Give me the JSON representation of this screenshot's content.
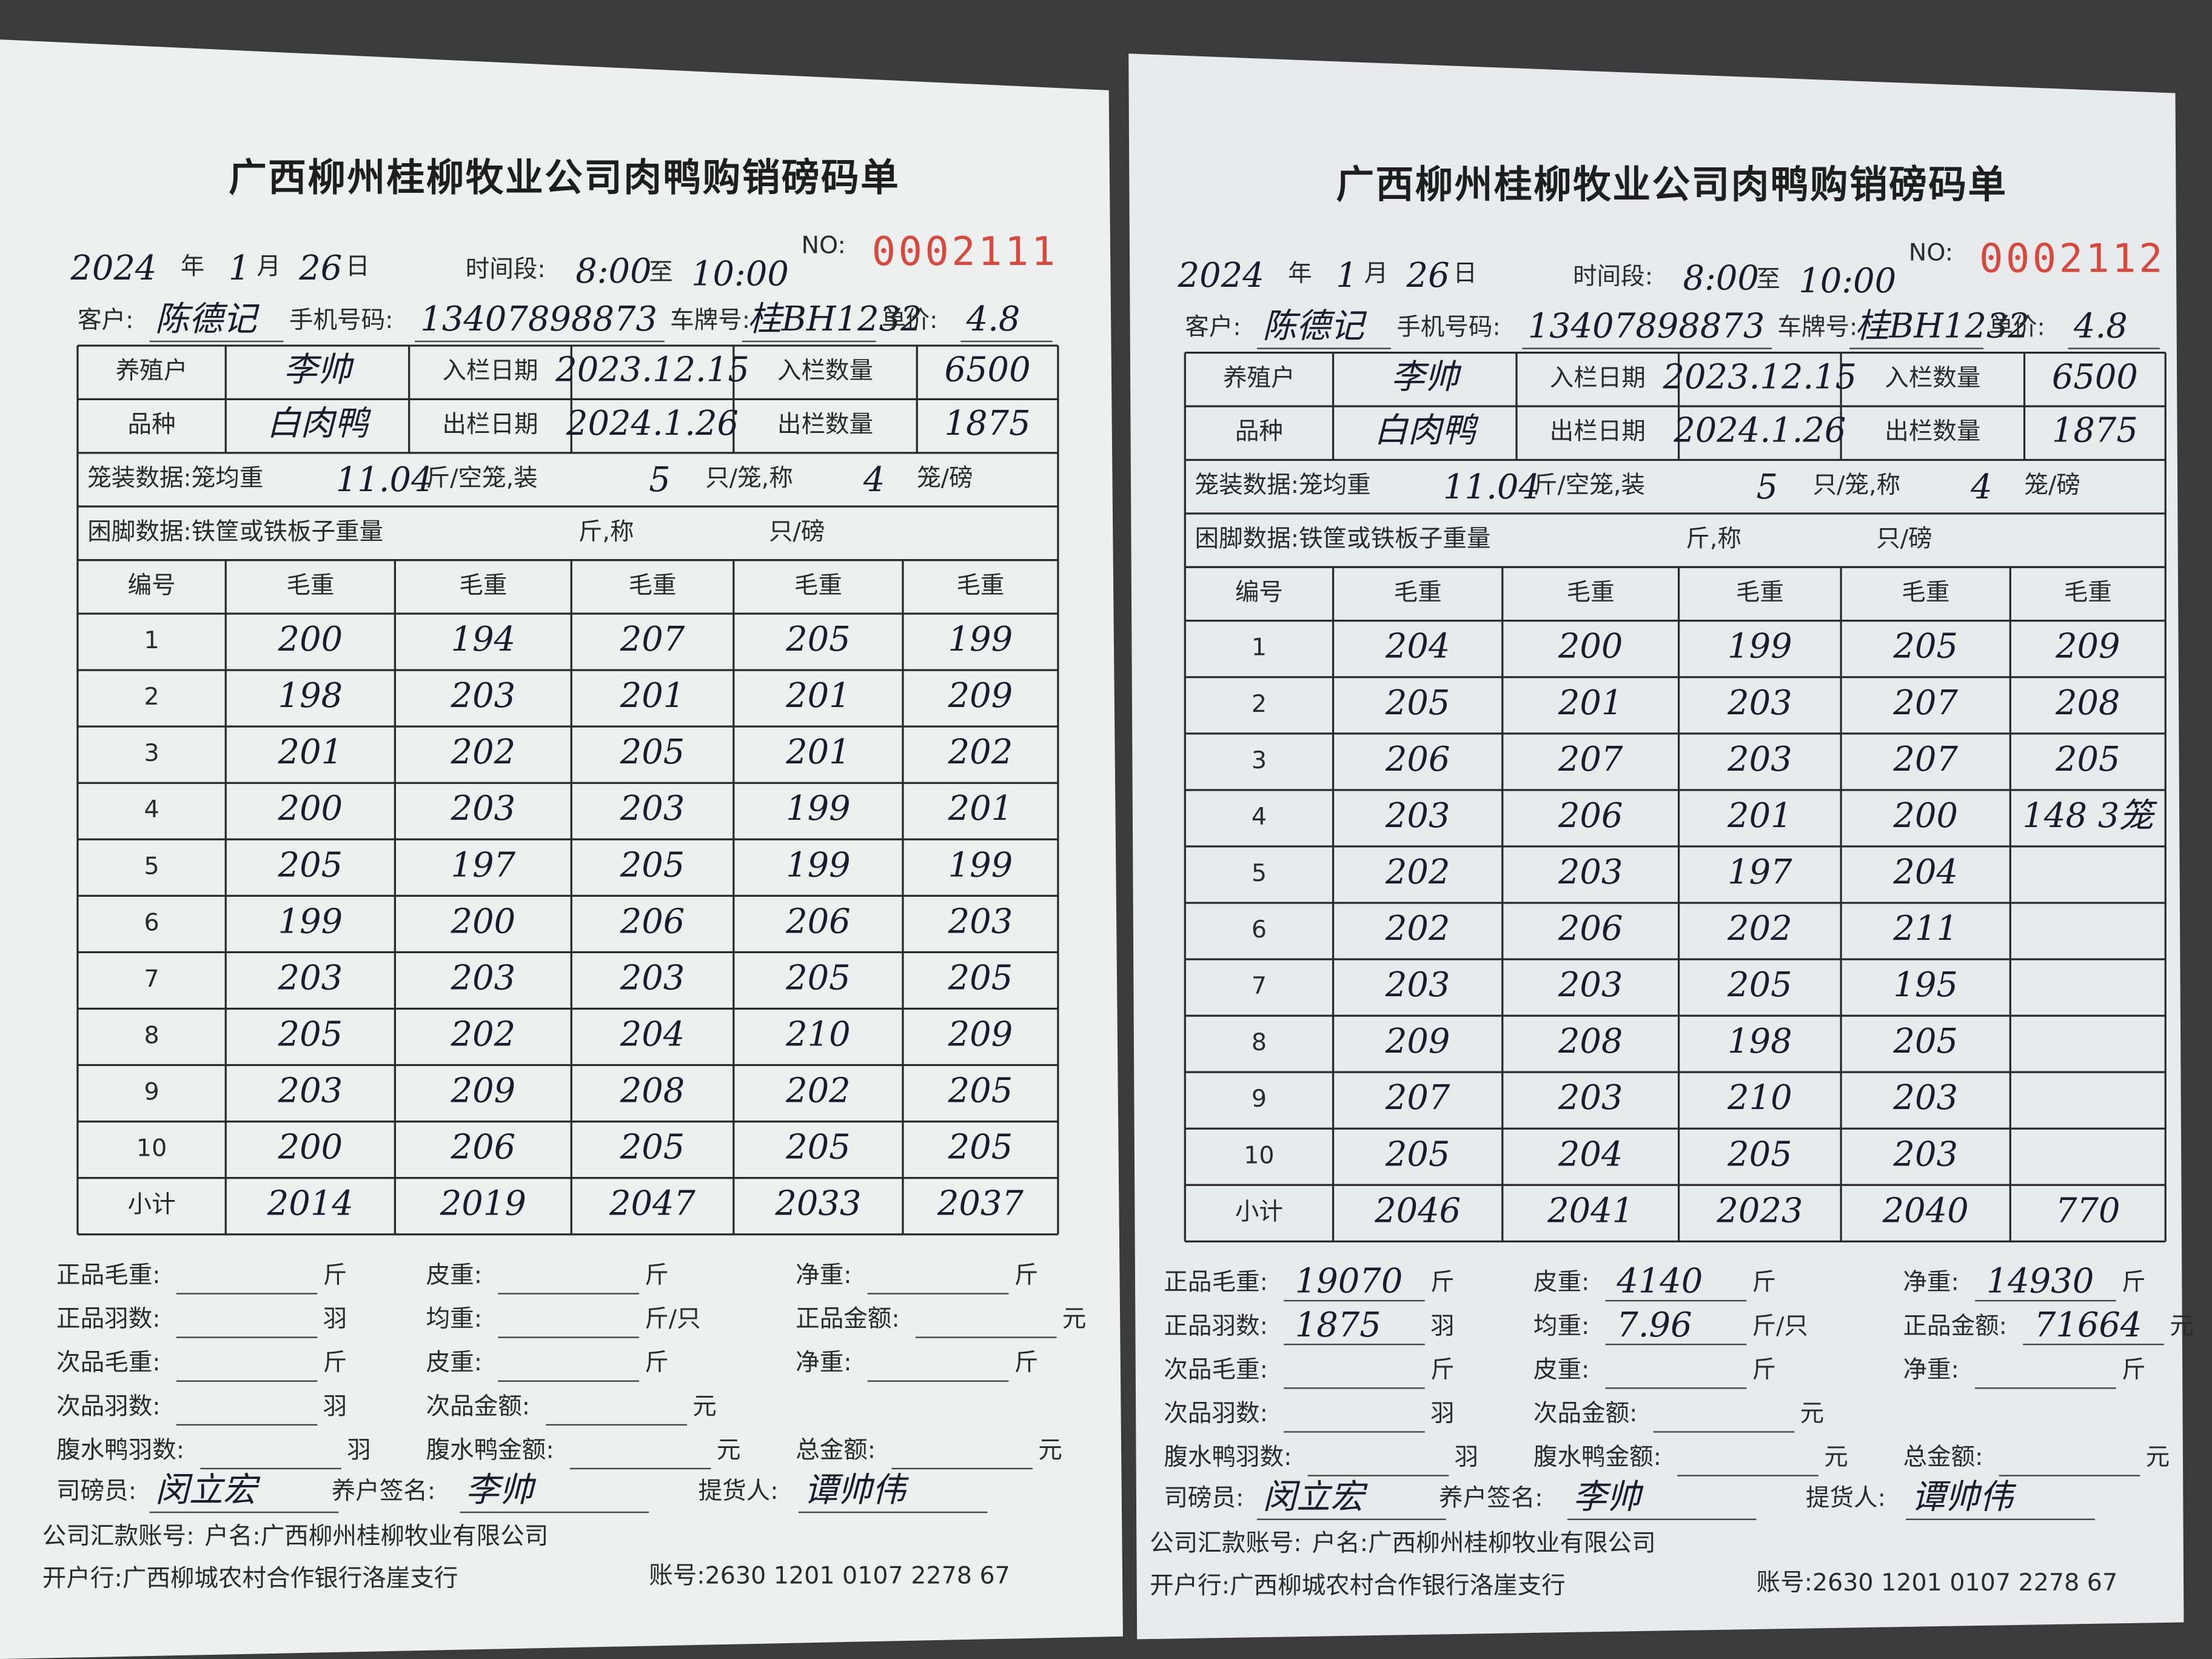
{
  "forms": [
    {
      "title": "广西柳州桂柳牧业公司肉鸭购销磅码单",
      "serial_label": "NO:",
      "serial": "0002111",
      "date": {
        "year": "2024",
        "year_unit": "年",
        "month": "1",
        "month_unit": "月",
        "day": "26",
        "day_unit": "日"
      },
      "time": {
        "label": "时间段:",
        "start": "8:00",
        "sep": "至",
        "end": "10:00"
      },
      "customer": [
        {
          "label": "客户:",
          "value": "陈德记"
        },
        {
          "label": "手机号码:",
          "value": "13407898873"
        },
        {
          "label": "车牌号:",
          "value": "桂BH1232"
        },
        {
          "label": "单价:",
          "value": "4.8"
        }
      ],
      "info_rows": [
        [
          "养殖户",
          "李帅",
          "入栏日期",
          "2023.12.15",
          "入栏数量",
          "6500"
        ],
        [
          "品种",
          "白肉鸭",
          "出栏日期",
          "2024.1.26",
          "出栏数量",
          "1875"
        ]
      ],
      "cage": {
        "label": "笼装数据:笼均重",
        "weight": "11.04",
        "unit1": "斤/空笼,装",
        "per_cage": "5",
        "unit2": "只/笼,称",
        "cages": "4",
        "unit3": "笼/磅"
      },
      "foot": {
        "label": "困脚数据:铁筐或铁板子重量",
        "unit1": "斤,称",
        "unit2": "只/磅"
      },
      "weights": {
        "header": [
          "编号",
          "毛重",
          "毛重",
          "毛重",
          "毛重",
          "毛重"
        ],
        "rows": [
          [
            "1",
            "200",
            "194",
            "207",
            "205",
            "199"
          ],
          [
            "2",
            "198",
            "203",
            "201",
            "201",
            "209"
          ],
          [
            "3",
            "201",
            "202",
            "205",
            "201",
            "202"
          ],
          [
            "4",
            "200",
            "203",
            "203",
            "199",
            "201"
          ],
          [
            "5",
            "205",
            "197",
            "205",
            "199",
            "199"
          ],
          [
            "6",
            "199",
            "200",
            "206",
            "206",
            "203"
          ],
          [
            "7",
            "203",
            "203",
            "203",
            "205",
            "205"
          ],
          [
            "8",
            "205",
            "202",
            "204",
            "210",
            "209"
          ],
          [
            "9",
            "203",
            "209",
            "208",
            "202",
            "205"
          ],
          [
            "10",
            "200",
            "206",
            "205",
            "205",
            "205"
          ]
        ],
        "subtotal": [
          "小计",
          "2014",
          "2019",
          "2047",
          "2033",
          "2037"
        ]
      },
      "summary": [
        [
          {
            "label": "正品毛重:",
            "unit": "斤"
          },
          {
            "label": "皮重:",
            "unit": "斤"
          },
          {
            "label": "净重:",
            "unit": "斤"
          }
        ],
        [
          {
            "label": "正品羽数:",
            "unit": "羽"
          },
          {
            "label": "均重:",
            "unit": "斤/只"
          },
          {
            "label": "正品金额:",
            "unit": "元"
          }
        ],
        [
          {
            "label": "次品毛重:",
            "unit": "斤"
          },
          {
            "label": "皮重:",
            "unit": "斤"
          },
          {
            "label": "净重:",
            "unit": "斤"
          }
        ],
        [
          {
            "label": "次品羽数:",
            "unit": "羽"
          },
          {
            "label": "次品金额:",
            "unit": "元"
          }
        ],
        [
          {
            "label": "腹水鸭羽数:",
            "unit": "羽"
          },
          {
            "label": "腹水鸭金额:",
            "unit": "元"
          },
          {
            "label": "总金额:",
            "unit": "元"
          }
        ]
      ],
      "signatures": [
        {
          "label": "司磅员:",
          "value": "闵立宏"
        },
        {
          "label": "养户签名:",
          "value": "李帅"
        },
        {
          "label": "提货人:",
          "value": "谭帅伟"
        }
      ],
      "account": {
        "label": "公司汇款账号:",
        "name": "户名:广西柳州桂柳牧业有限公司"
      },
      "bank": {
        "name": "开户行:广西柳城农村合作银行洛崖支行",
        "number": "账号:2630 1201 0107 2278 67"
      }
    },
    {
      "title": "广西柳州桂柳牧业公司肉鸭购销磅码单",
      "serial_label": "NO:",
      "serial": "0002112",
      "date": {
        "year": "2024",
        "year_unit": "年",
        "month": "1",
        "month_unit": "月",
        "day": "26",
        "day_unit": "日"
      },
      "time": {
        "label": "时间段:",
        "start": "8:00",
        "sep": "至",
        "end": "10:00"
      },
      "customer": [
        {
          "label": "客户:",
          "value": "陈德记"
        },
        {
          "label": "手机号码:",
          "value": "13407898873"
        },
        {
          "label": "车牌号:",
          "value": "桂BH1232"
        },
        {
          "label": "单价:",
          "value": "4.8"
        }
      ],
      "info_rows": [
        [
          "养殖户",
          "李帅",
          "入栏日期",
          "2023.12.15",
          "入栏数量",
          "6500"
        ],
        [
          "品种",
          "白肉鸭",
          "出栏日期",
          "2024.1.26",
          "出栏数量",
          "1875"
        ]
      ],
      "cage": {
        "label": "笼装数据:笼均重",
        "weight": "11.04",
        "unit1": "斤/空笼,装",
        "per_cage": "5",
        "unit2": "只/笼,称",
        "cages": "4",
        "unit3": "笼/磅"
      },
      "foot": {
        "label": "困脚数据:铁筐或铁板子重量",
        "unit1": "斤,称",
        "unit2": "只/磅"
      },
      "weights": {
        "header": [
          "编号",
          "毛重",
          "毛重",
          "毛重",
          "毛重",
          "毛重"
        ],
        "rows": [
          [
            "1",
            "204",
            "200",
            "199",
            "205",
            "209"
          ],
          [
            "2",
            "205",
            "201",
            "203",
            "207",
            "208"
          ],
          [
            "3",
            "206",
            "207",
            "203",
            "207",
            "205"
          ],
          [
            "4",
            "203",
            "206",
            "201",
            "200",
            "148 3笼"
          ],
          [
            "5",
            "202",
            "203",
            "197",
            "204",
            null
          ],
          [
            "6",
            "202",
            "206",
            "202",
            "211",
            null
          ],
          [
            "7",
            "203",
            "203",
            "205",
            "195",
            null
          ],
          [
            "8",
            "209",
            "208",
            "198",
            "205",
            null
          ],
          [
            "9",
            "207",
            "203",
            "210",
            "203",
            null
          ],
          [
            "10",
            "205",
            "204",
            "205",
            "203",
            null
          ]
        ],
        "subtotal": [
          "小计",
          "2046",
          "2041",
          "2023",
          "2040",
          "770"
        ]
      },
      "summary": [
        [
          {
            "label": "正品毛重:",
            "value": "19070",
            "unit": "斤"
          },
          {
            "label": "皮重:",
            "value": "4140",
            "unit": "斤"
          },
          {
            "label": "净重:",
            "value": "14930",
            "unit": "斤"
          }
        ],
        [
          {
            "label": "正品羽数:",
            "value": "1875",
            "unit": "羽"
          },
          {
            "label": "均重:",
            "value": "7.96",
            "unit": "斤/只"
          },
          {
            "label": "正品金额:",
            "value": "71664",
            "unit": "元"
          }
        ],
        [
          {
            "label": "次品毛重:",
            "unit": "斤"
          },
          {
            "label": "皮重:",
            "unit": "斤"
          },
          {
            "label": "净重:",
            "unit": "斤"
          }
        ],
        [
          {
            "label": "次品羽数:",
            "unit": "羽"
          },
          {
            "label": "次品金额:",
            "unit": "元"
          }
        ],
        [
          {
            "label": "腹水鸭羽数:",
            "unit": "羽"
          },
          {
            "label": "腹水鸭金额:",
            "unit": "元"
          },
          {
            "label": "总金额:",
            "unit": "元"
          }
        ]
      ],
      "signatures": [
        {
          "label": "司磅员:",
          "value": "闵立宏"
        },
        {
          "label": "养户签名:",
          "value": "李帅"
        },
        {
          "label": "提货人:",
          "value": "谭帅伟"
        }
      ],
      "account": {
        "label": "公司汇款账号:",
        "name": "户名:广西柳州桂柳牧业有限公司"
      },
      "bank": {
        "name": "开户行:广西柳城农村合作银行洛崖支行",
        "number": "账号:2630 1201 0107 2278 67"
      }
    }
  ]
}
